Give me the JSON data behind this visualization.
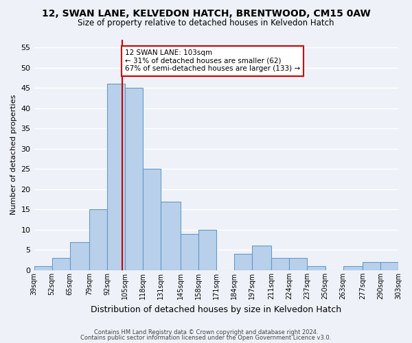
{
  "title1": "12, SWAN LANE, KELVEDON HATCH, BRENTWOOD, CM15 0AW",
  "title2": "Size of property relative to detached houses in Kelvedon Hatch",
  "xlabel": "Distribution of detached houses by size in Kelvedon Hatch",
  "ylabel": "Number of detached properties",
  "bin_labels": [
    "39sqm",
    "52sqm",
    "65sqm",
    "79sqm",
    "92sqm",
    "105sqm",
    "118sqm",
    "131sqm",
    "145sqm",
    "158sqm",
    "171sqm",
    "184sqm",
    "197sqm",
    "211sqm",
    "224sqm",
    "237sqm",
    "250sqm",
    "263sqm",
    "277sqm",
    "290sqm",
    "303sqm"
  ],
  "bin_edges": [
    39,
    52,
    65,
    79,
    92,
    105,
    118,
    131,
    145,
    158,
    171,
    184,
    197,
    211,
    224,
    237,
    250,
    263,
    277,
    290,
    303
  ],
  "bar_heights": [
    1,
    3,
    7,
    15,
    46,
    45,
    25,
    17,
    9,
    10,
    0,
    4,
    6,
    3,
    3,
    1,
    0,
    1,
    2,
    2
  ],
  "bar_color": "#b8d0ea",
  "bar_edge_color": "#6699cc",
  "property_value": 103,
  "vline_color": "#cc0000",
  "annotation_line1": "12 SWAN LANE: 103sqm",
  "annotation_line2": "← 31% of detached houses are smaller (62)",
  "annotation_line3": "67% of semi-detached houses are larger (133) →",
  "annotation_box_color": "#ffffff",
  "annotation_box_edge_color": "#cc0000",
  "ylim": [
    0,
    57
  ],
  "yticks": [
    0,
    5,
    10,
    15,
    20,
    25,
    30,
    35,
    40,
    45,
    50,
    55
  ],
  "footer1": "Contains HM Land Registry data © Crown copyright and database right 2024.",
  "footer2": "Contains public sector information licensed under the Open Government Licence v3.0.",
  "background_color": "#eef2f8"
}
